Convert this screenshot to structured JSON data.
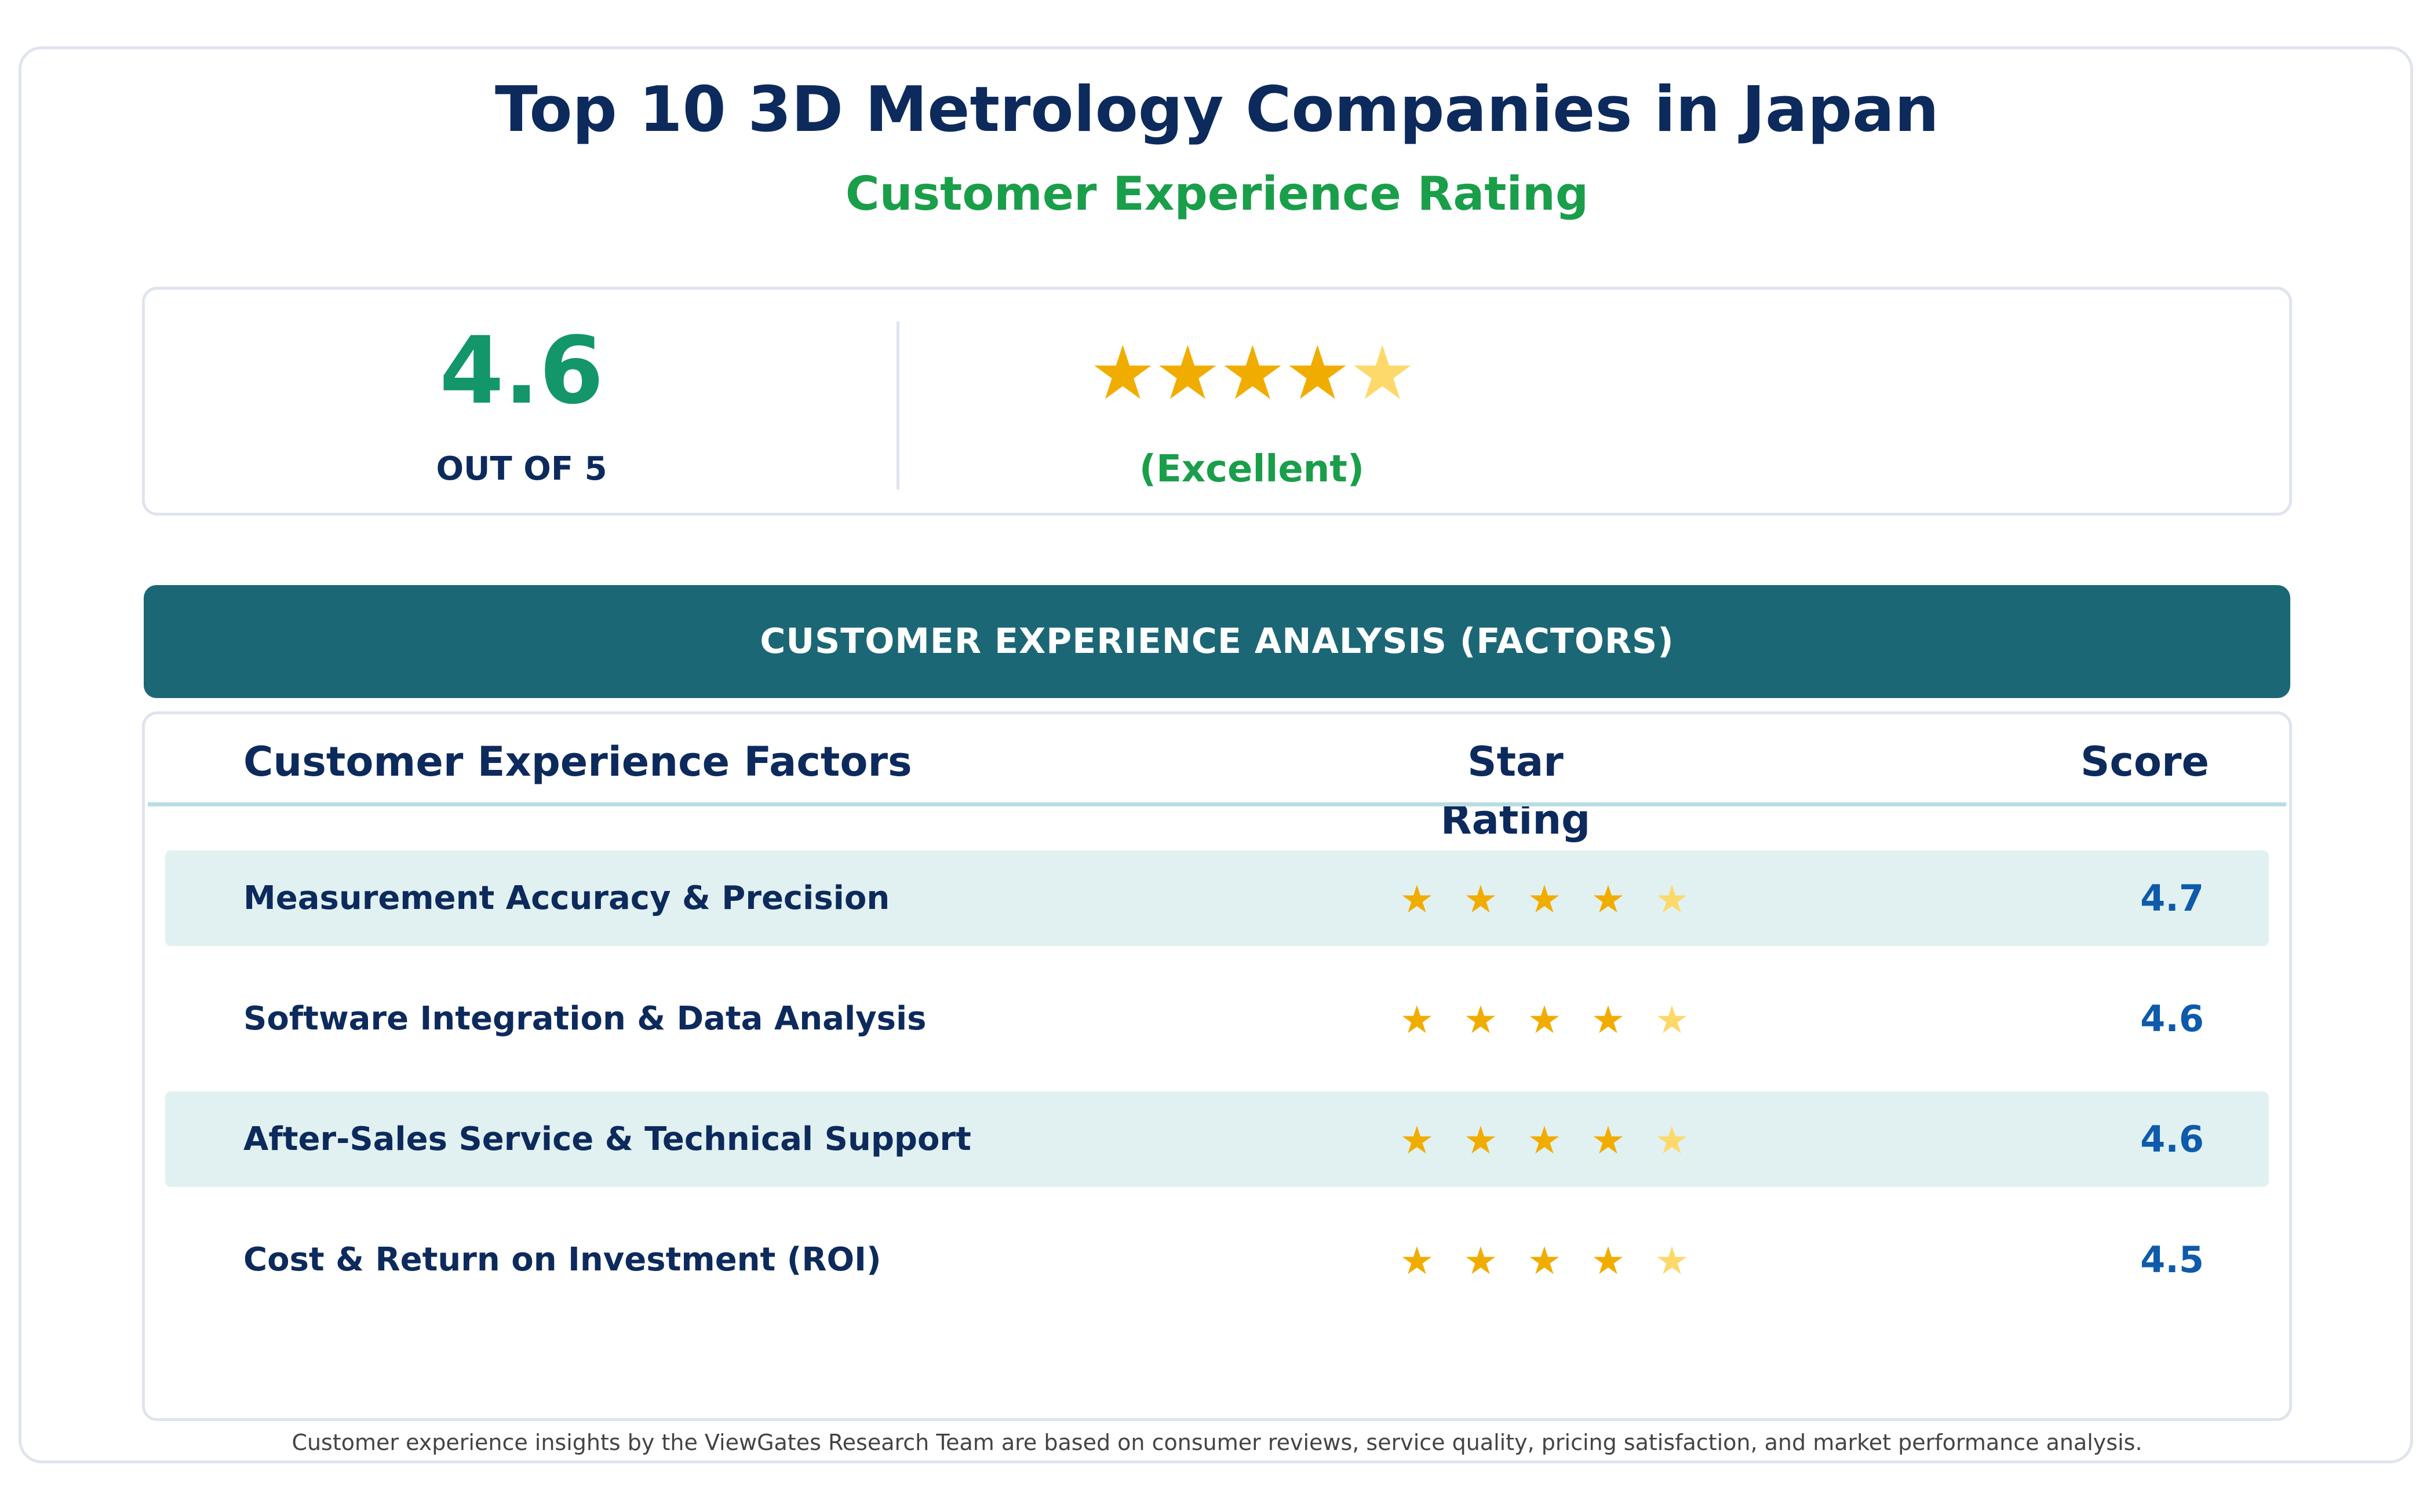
{
  "header": {
    "title": "Top 10 3D Metrology Companies in Japan",
    "subtitle": "Customer Experience Rating"
  },
  "summary": {
    "score": "4.6",
    "out_of": "OUT OF 5",
    "stars": 4.6,
    "rating_label": "(Excellent)"
  },
  "section": {
    "heading": "CUSTOMER EXPERIENCE ANALYSIS (FACTORS)"
  },
  "table": {
    "columns": {
      "factor": "Customer Experience Factors",
      "stars": "Star Rating",
      "score": "Score"
    },
    "rows": [
      {
        "factor": "Measurement Accuracy & Precision",
        "stars": 4.7,
        "score": "4.7"
      },
      {
        "factor": "Software Integration & Data Analysis",
        "stars": 4.6,
        "score": "4.6"
      },
      {
        "factor": "After-Sales Service & Technical Support",
        "stars": 4.6,
        "score": "4.6"
      },
      {
        "factor": "Cost & Return on Investment (ROI)",
        "stars": 4.5,
        "score": "4.5"
      }
    ]
  },
  "footer": {
    "note": "Customer experience insights by the ViewGates Research Team are based on consumer reviews, service quality, pricing satisfaction, and market performance analysis."
  },
  "colors": {
    "navy": "#0d2a5c",
    "green": "#1a9e4a",
    "score_green": "#13966a",
    "teal_bar": "#1c6775",
    "row_shade": "#e1f1f1",
    "star_full": "#f0ad00",
    "star_partial": "#fcd96a",
    "score_blue": "#0e5aab"
  }
}
